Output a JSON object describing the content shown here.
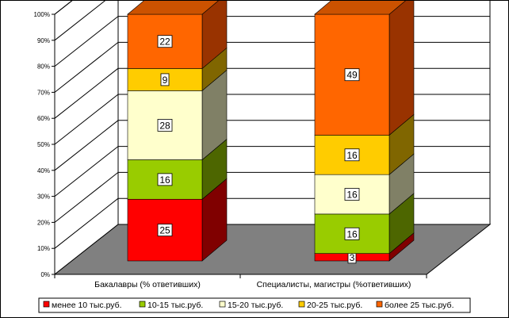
{
  "chart_data": {
    "type": "bar",
    "stacked": true,
    "three_d": true,
    "title": "",
    "xlabel": "",
    "ylabel": "",
    "ylim": [
      0,
      100
    ],
    "y_tick_labels": [
      "0%",
      "10%",
      "20%",
      "30%",
      "40%",
      "50%",
      "60%",
      "70%",
      "80%",
      "90%",
      "100%"
    ],
    "categories": [
      "Бакалавры (% ответивших)",
      "Специалисты, магистры (%ответивших)"
    ],
    "series": [
      {
        "name": "менее 10 тыс.руб.",
        "values": [
          25,
          3
        ],
        "color": "#ff0000",
        "side": "#800000",
        "top": "#ff8080"
      },
      {
        "name": "10-15 тыс.руб.",
        "values": [
          16,
          16
        ],
        "color": "#99cc00",
        "side": "#4d6600",
        "top": "#ccee66"
      },
      {
        "name": "15-20 тыс.руб.",
        "values": [
          28,
          16
        ],
        "color": "#ffffcc",
        "side": "#808066",
        "top": "#ffffe6"
      },
      {
        "name": "20-25 тыс.руб.",
        "values": [
          9,
          16
        ],
        "color": "#ffcc00",
        "side": "#806600",
        "top": "#ffe680"
      },
      {
        "name": "более 25 тыс.руб.",
        "values": [
          22,
          49
        ],
        "color": "#ff6600",
        "side": "#993300",
        "top": "#cc5200"
      }
    ],
    "grid": true,
    "legend_position": "bottom",
    "colors": {
      "floor": "#808080",
      "walls": "#ffffff",
      "gridline": "#000000"
    }
  }
}
